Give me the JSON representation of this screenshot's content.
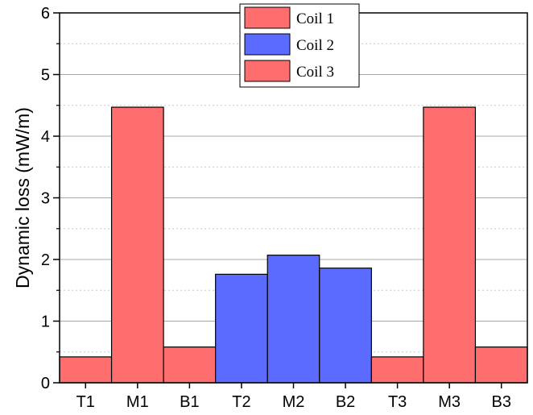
{
  "chart_data": {
    "type": "bar",
    "categories": [
      "T1",
      "M1",
      "B1",
      "T2",
      "M2",
      "B2",
      "T3",
      "M3",
      "B3"
    ],
    "values": [
      0.42,
      4.47,
      0.58,
      1.76,
      2.07,
      1.86,
      0.42,
      4.47,
      0.58
    ],
    "groups": [
      "Coil 1",
      "Coil 1",
      "Coil 1",
      "Coil 2",
      "Coil 2",
      "Coil 2",
      "Coil 3",
      "Coil 3",
      "Coil 3"
    ],
    "xlabel": "",
    "ylabel": "Dynamic loss (mW/m)",
    "ylim": [
      0,
      6
    ],
    "yticks": [
      0,
      1,
      2,
      3,
      4,
      5,
      6
    ],
    "grid": true,
    "legend": {
      "position": "top-center",
      "entries": [
        {
          "name": "Coil 1",
          "color": "#ff6e6e"
        },
        {
          "name": "Coil 2",
          "color": "#5b6bff"
        },
        {
          "name": "Coil 3",
          "color": "#ff6e6e"
        }
      ]
    }
  }
}
